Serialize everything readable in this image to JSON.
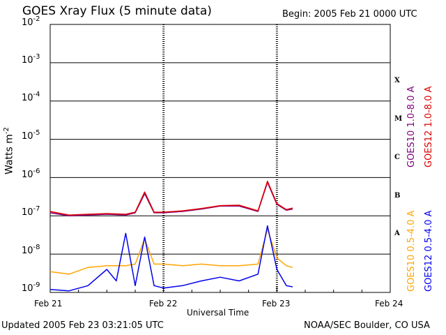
{
  "header": {
    "title": "GOES Xray Flux (5 minute data)",
    "begin": "Begin:  2005 Feb 21 0000 UTC"
  },
  "footer": {
    "updated": "Updated 2005 Feb 23 03:21:05 UTC",
    "credit": "NOAA/SEC Boulder, CO USA"
  },
  "colors": {
    "goes10_long": "#800080",
    "goes12_long": "#dd0000",
    "goes10_short": "#ffa500",
    "goes12_short": "#0000ee"
  },
  "chart_data": {
    "type": "line",
    "title": "GOES Xray Flux (5 minute data)",
    "xlabel": "Universal Time",
    "ylabel": "Watts m-2",
    "yscale": "log",
    "ylim": [
      1e-09,
      0.01
    ],
    "xlim": [
      "2005-02-21",
      "2005-02-24"
    ],
    "x_ticks": [
      "Feb 21",
      "Feb 22",
      "Feb 23",
      "Feb 24"
    ],
    "y_ticks": [
      "10-9",
      "10-8",
      "10-7",
      "10-6",
      "10-5",
      "10-4",
      "10-3",
      "10-2"
    ],
    "flare_classes": [
      {
        "label": "A",
        "flux": 1e-08
      },
      {
        "label": "B",
        "flux": 1e-07
      },
      {
        "label": "C",
        "flux": 1e-06
      },
      {
        "label": "M",
        "flux": 1e-05
      },
      {
        "label": "X",
        "flux": 0.0001
      }
    ],
    "grid": true,
    "legend_position": "right, vertical",
    "series": [
      {
        "name": "GOES10 1.0-8.0 A",
        "x": [
          "2005-02-21 00:00",
          "2005-02-21 04:00",
          "2005-02-21 08:00",
          "2005-02-21 12:00",
          "2005-02-21 16:00",
          "2005-02-21 18:00",
          "2005-02-21 20:00",
          "2005-02-21 22:00",
          "2005-02-22 00:00",
          "2005-02-22 04:00",
          "2005-02-22 08:00",
          "2005-02-22 12:00",
          "2005-02-22 16:00",
          "2005-02-22 20:00",
          "2005-02-22 22:00",
          "2005-02-23 00:00",
          "2005-02-23 02:00",
          "2005-02-23 03:20"
        ],
        "y": [
          1.2e-07,
          1e-07,
          1.05e-07,
          1.1e-07,
          1.05e-07,
          1.2e-07,
          3.8e-07,
          1.2e-07,
          1.2e-07,
          1.3e-07,
          1.5e-07,
          1.8e-07,
          1.8e-07,
          1.3e-07,
          7.5e-07,
          2e-07,
          1.4e-07,
          1.5e-07
        ]
      },
      {
        "name": "GOES12 1.0-8.0 A",
        "x": [
          "2005-02-21 00:00",
          "2005-02-21 04:00",
          "2005-02-21 08:00",
          "2005-02-21 12:00",
          "2005-02-21 16:00",
          "2005-02-21 18:00",
          "2005-02-21 20:00",
          "2005-02-21 22:00",
          "2005-02-22 00:00",
          "2005-02-22 04:00",
          "2005-02-22 08:00",
          "2005-02-22 12:00",
          "2005-02-22 16:00",
          "2005-02-22 20:00",
          "2005-02-22 22:00",
          "2005-02-23 00:00",
          "2005-02-23 02:00",
          "2005-02-23 03:20"
        ],
        "y": [
          1.3e-07,
          1.05e-07,
          1.1e-07,
          1.15e-07,
          1.1e-07,
          1.25e-07,
          4.2e-07,
          1.25e-07,
          1.25e-07,
          1.35e-07,
          1.55e-07,
          1.85e-07,
          1.9e-07,
          1.35e-07,
          8e-07,
          2.1e-07,
          1.45e-07,
          1.6e-07
        ]
      },
      {
        "name": "GOES10 0.5-4.0 A",
        "x": [
          "2005-02-21 00:00",
          "2005-02-21 04:00",
          "2005-02-21 08:00",
          "2005-02-21 12:00",
          "2005-02-21 16:00",
          "2005-02-21 18:00",
          "2005-02-21 20:00",
          "2005-02-21 22:00",
          "2005-02-22 00:00",
          "2005-02-22 04:00",
          "2005-02-22 08:00",
          "2005-02-22 12:00",
          "2005-02-22 16:00",
          "2005-02-22 20:00",
          "2005-02-22 22:00",
          "2005-02-23 00:00",
          "2005-02-23 02:00",
          "2005-02-23 03:20"
        ],
        "y": [
          3.5e-09,
          3e-09,
          4.5e-09,
          5e-09,
          5e-09,
          5.5e-09,
          2.5e-08,
          5.5e-09,
          5.5e-09,
          5e-09,
          5.5e-09,
          5e-09,
          5e-09,
          5.5e-09,
          4.5e-08,
          8e-09,
          5e-09,
          4.5e-09
        ]
      },
      {
        "name": "GOES12 0.5-4.0 A",
        "x": [
          "2005-02-21 00:00",
          "2005-02-21 04:00",
          "2005-02-21 08:00",
          "2005-02-21 12:00",
          "2005-02-21 14:00",
          "2005-02-21 16:00",
          "2005-02-21 18:00",
          "2005-02-21 20:00",
          "2005-02-21 22:00",
          "2005-02-22 00:00",
          "2005-02-22 04:00",
          "2005-02-22 08:00",
          "2005-02-22 12:00",
          "2005-02-22 16:00",
          "2005-02-22 20:00",
          "2005-02-22 22:00",
          "2005-02-23 00:00",
          "2005-02-23 02:00",
          "2005-02-23 03:20"
        ],
        "y": [
          1.2e-09,
          1.1e-09,
          1.5e-09,
          4e-09,
          2e-09,
          3.5e-08,
          1.5e-09,
          2.8e-08,
          1.5e-09,
          1.3e-09,
          1.5e-09,
          2e-09,
          2.5e-09,
          2e-09,
          3e-09,
          5.5e-08,
          4e-09,
          1.5e-09,
          1.4e-09
        ]
      }
    ]
  }
}
